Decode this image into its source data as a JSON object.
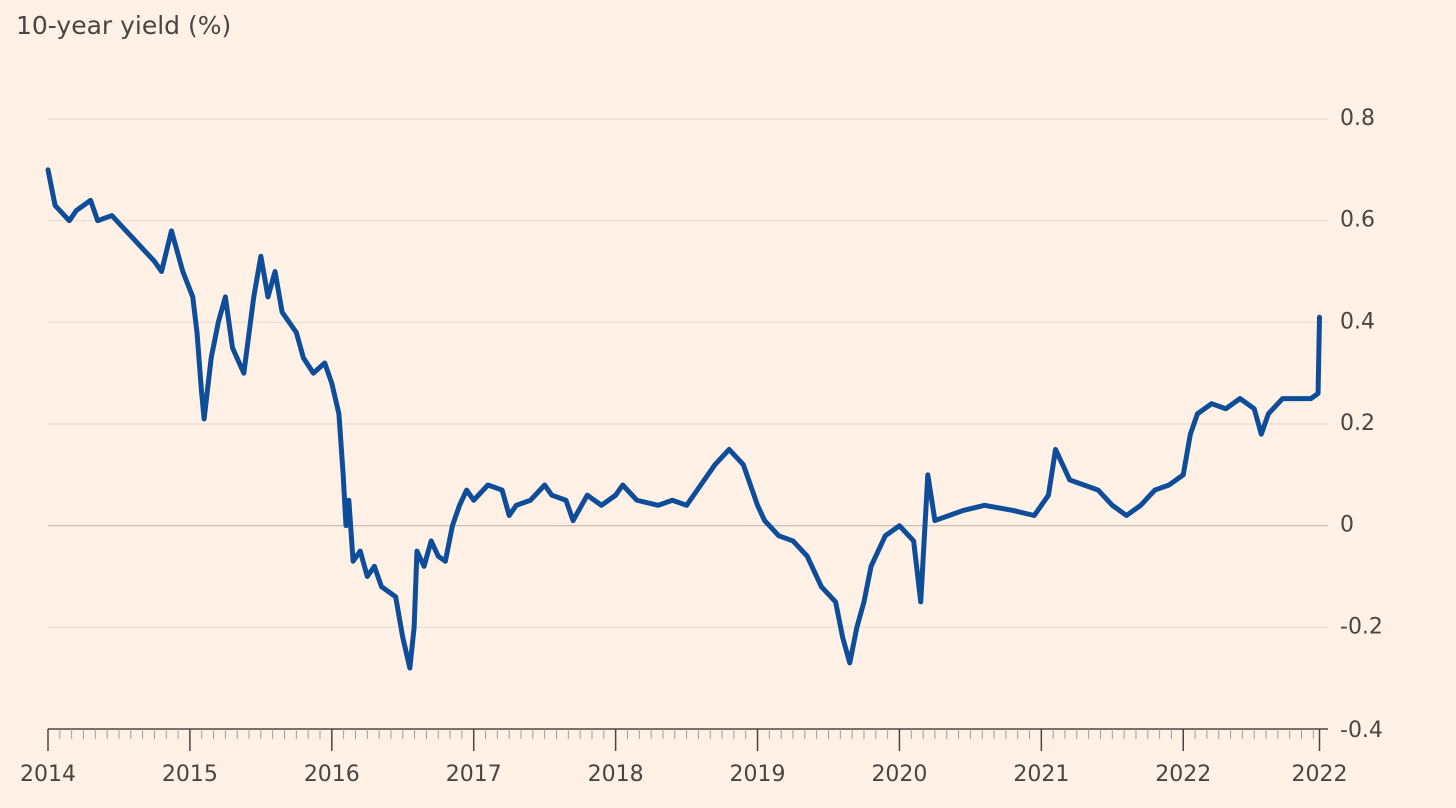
{
  "chart_data": {
    "type": "line",
    "title": "10-year yield (%)",
    "color": "#0e4d99",
    "grid": true,
    "xlim": [
      2014,
      2023.02
    ],
    "ylim": [
      -0.4,
      0.8
    ],
    "yticks": [
      0.8,
      0.6,
      0.4,
      0.2,
      0,
      -0.2,
      -0.4
    ],
    "xticks": [
      2014,
      2015,
      2016,
      2017,
      2018,
      2019,
      2020,
      2021,
      2022,
      {
        "value": 2022.96,
        "label": "2022"
      }
    ],
    "x": [
      2014.0,
      2014.05,
      2014.15,
      2014.2,
      2014.3,
      2014.35,
      2014.45,
      2014.55,
      2014.65,
      2014.75,
      2014.8,
      2014.87,
      2014.95,
      2015.02,
      2015.05,
      2015.08,
      2015.1,
      2015.15,
      2015.2,
      2015.25,
      2015.3,
      2015.38,
      2015.45,
      2015.5,
      2015.55,
      2015.6,
      2015.65,
      2015.7,
      2015.75,
      2015.8,
      2015.87,
      2015.95,
      2016.0,
      2016.05,
      2016.08,
      2016.1,
      2016.12,
      2016.15,
      2016.2,
      2016.25,
      2016.3,
      2016.35,
      2016.45,
      2016.5,
      2016.55,
      2016.58,
      2016.6,
      2016.65,
      2016.7,
      2016.75,
      2016.8,
      2016.85,
      2016.9,
      2016.95,
      2017.0,
      2017.1,
      2017.2,
      2017.25,
      2017.3,
      2017.4,
      2017.5,
      2017.55,
      2017.65,
      2017.7,
      2017.8,
      2017.9,
      2018.0,
      2018.05,
      2018.15,
      2018.3,
      2018.4,
      2018.5,
      2018.6,
      2018.7,
      2018.8,
      2018.9,
      2019.0,
      2019.05,
      2019.15,
      2019.25,
      2019.35,
      2019.45,
      2019.55,
      2019.6,
      2019.65,
      2019.7,
      2019.75,
      2019.8,
      2019.9,
      2020.0,
      2020.1,
      2020.15,
      2020.2,
      2020.25,
      2020.35,
      2020.45,
      2020.6,
      2020.8,
      2020.95,
      2021.05,
      2021.1,
      2021.2,
      2021.3,
      2021.4,
      2021.5,
      2021.6,
      2021.7,
      2021.8,
      2021.9,
      2022.0,
      2022.05,
      2022.1,
      2022.2,
      2022.3,
      2022.4,
      2022.5,
      2022.55,
      2022.6,
      2022.7,
      2022.8,
      2022.9,
      2022.95,
      2022.96
    ],
    "values": [
      0.7,
      0.63,
      0.6,
      0.62,
      0.64,
      0.6,
      0.61,
      0.58,
      0.55,
      0.52,
      0.5,
      0.58,
      0.5,
      0.45,
      0.38,
      0.27,
      0.21,
      0.33,
      0.4,
      0.45,
      0.35,
      0.3,
      0.45,
      0.53,
      0.45,
      0.5,
      0.42,
      0.4,
      0.38,
      0.33,
      0.3,
      0.32,
      0.28,
      0.22,
      0.1,
      0.0,
      0.05,
      -0.07,
      -0.05,
      -0.1,
      -0.08,
      -0.12,
      -0.14,
      -0.22,
      -0.28,
      -0.2,
      -0.05,
      -0.08,
      -0.03,
      -0.06,
      -0.07,
      0.0,
      0.04,
      0.07,
      0.05,
      0.08,
      0.07,
      0.02,
      0.04,
      0.05,
      0.08,
      0.06,
      0.05,
      0.01,
      0.06,
      0.04,
      0.06,
      0.08,
      0.05,
      0.04,
      0.05,
      0.04,
      0.08,
      0.12,
      0.15,
      0.12,
      0.04,
      0.01,
      -0.02,
      -0.03,
      -0.06,
      -0.12,
      -0.15,
      -0.22,
      -0.27,
      -0.2,
      -0.15,
      -0.08,
      -0.02,
      0.0,
      -0.03,
      -0.15,
      0.1,
      0.01,
      0.02,
      0.03,
      0.04,
      0.03,
      0.02,
      0.06,
      0.15,
      0.09,
      0.08,
      0.07,
      0.04,
      0.02,
      0.04,
      0.07,
      0.08,
      0.1,
      0.18,
      0.22,
      0.24,
      0.23,
      0.25,
      0.23,
      0.18,
      0.22,
      0.25,
      0.25,
      0.25,
      0.26,
      0.41
    ]
  }
}
